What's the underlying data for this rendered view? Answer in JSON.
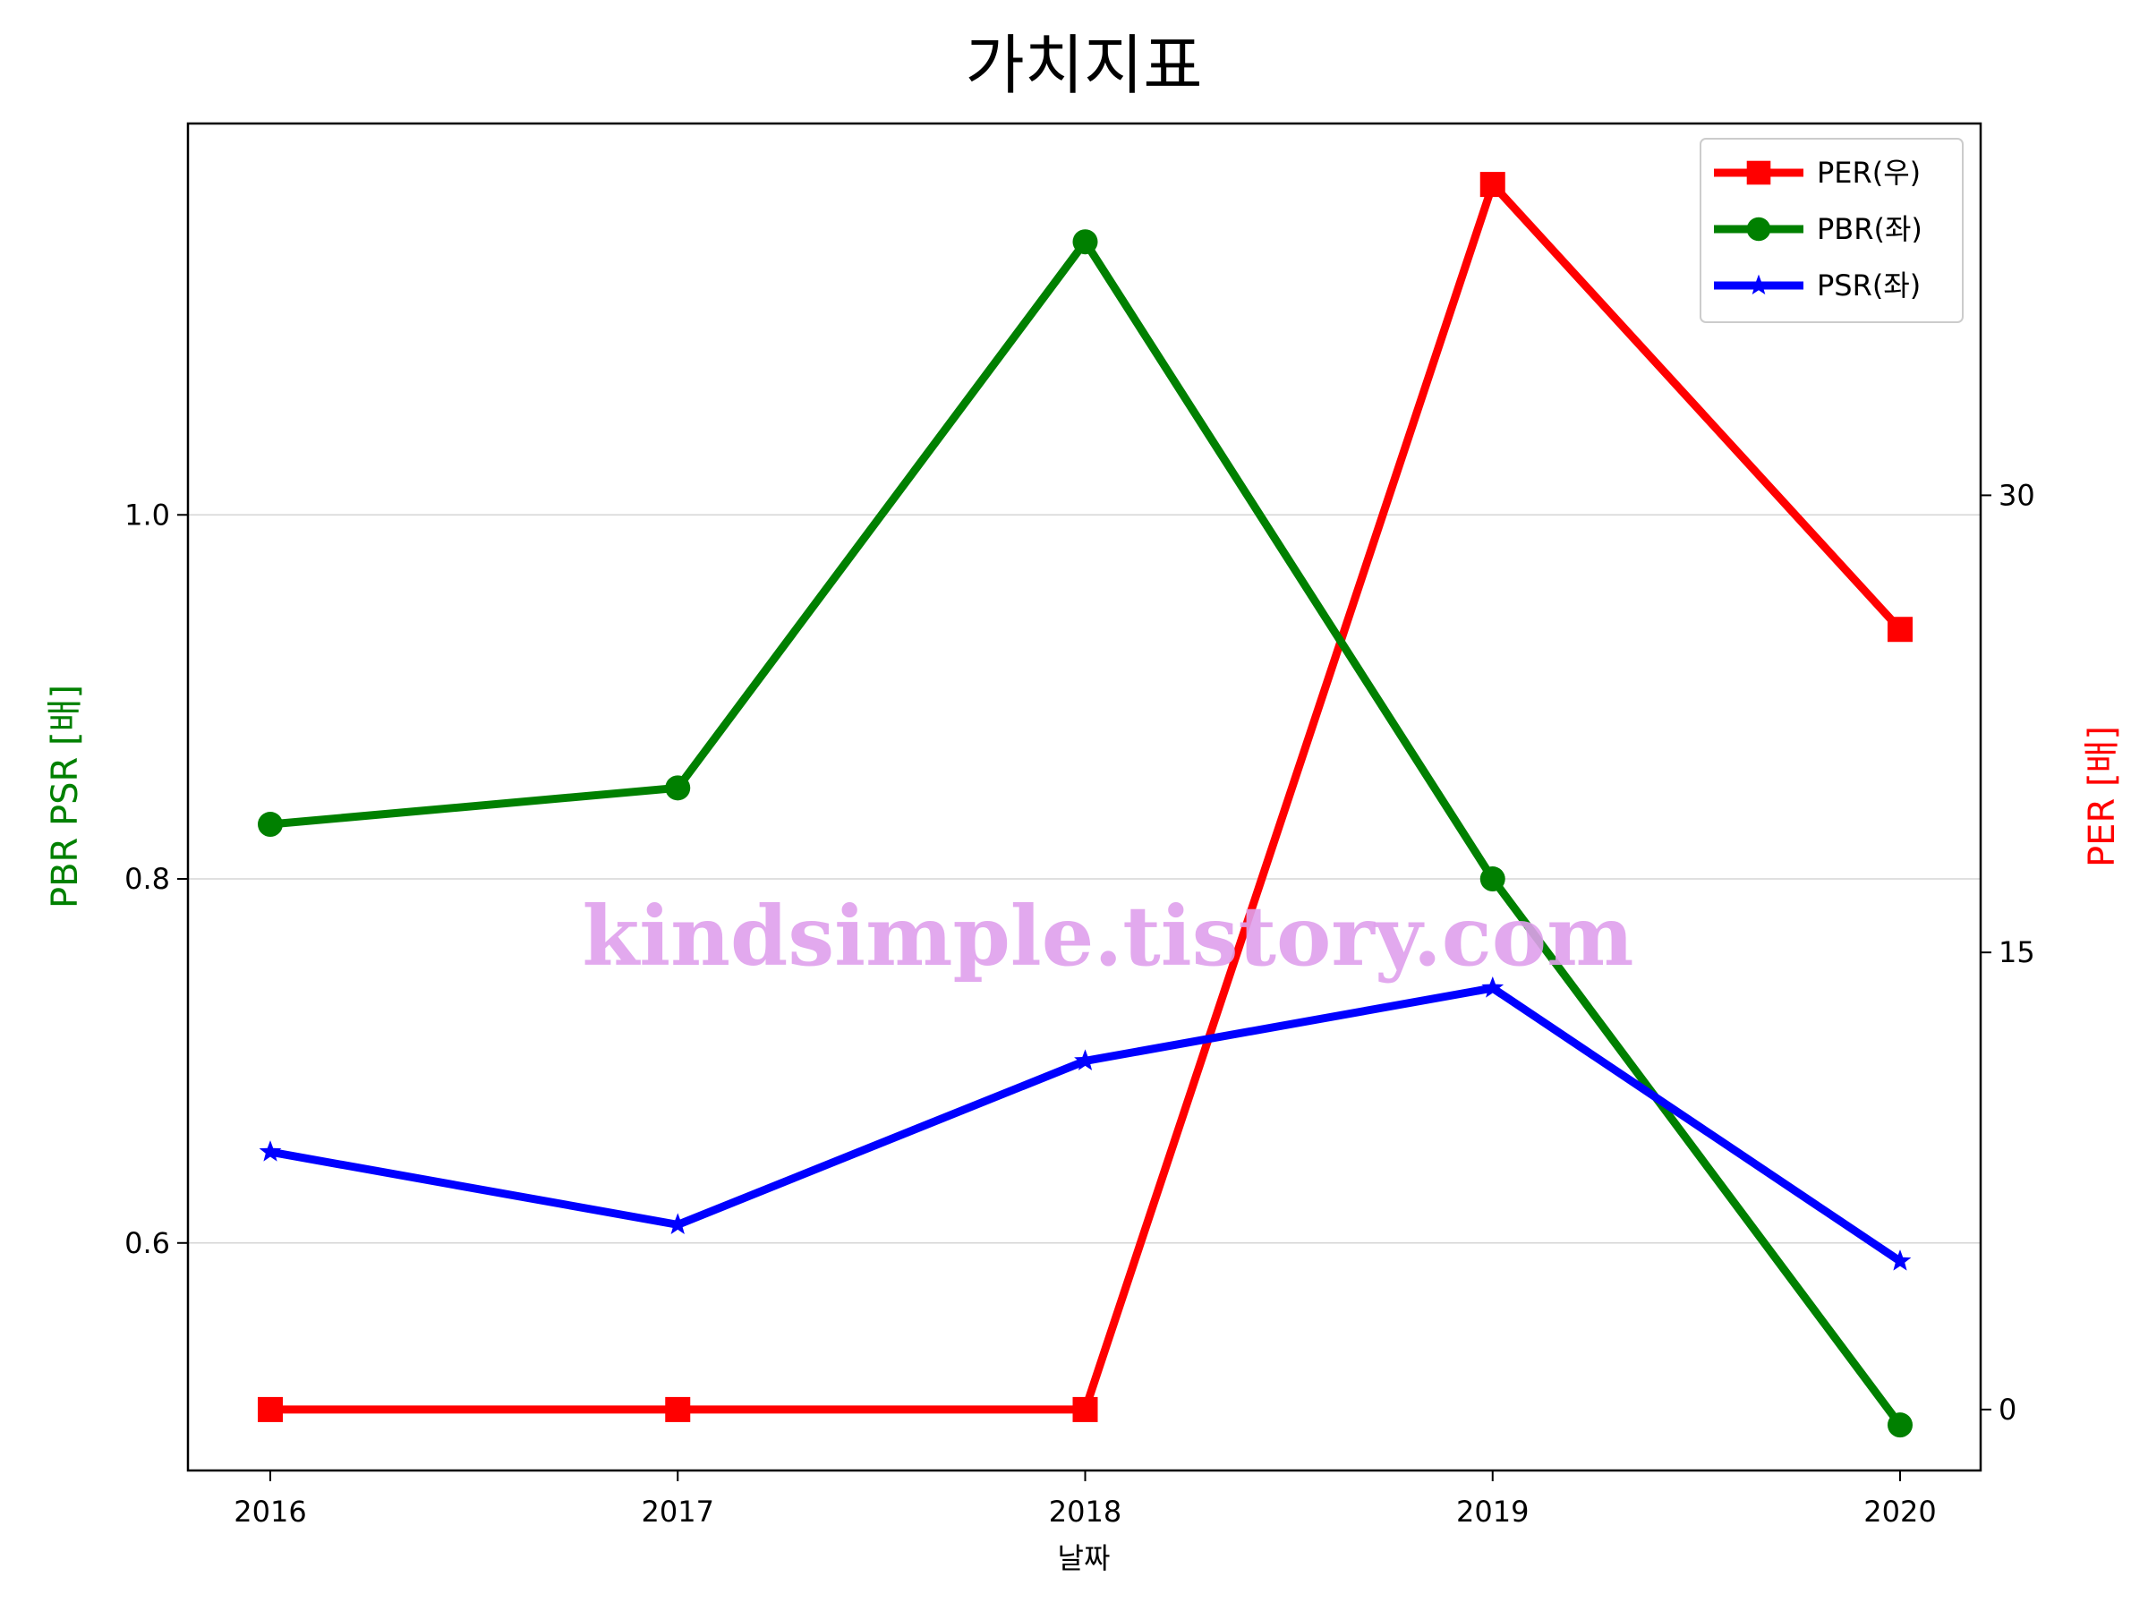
{
  "chart_data": {
    "type": "line",
    "title": "가치지표",
    "xlabel": "날짜",
    "ylabel_left": "PBR PSR [배]",
    "ylabel_right": "PER [배]",
    "ylabel_left_color": "#008000",
    "ylabel_right_color": "#ff0000",
    "x": [
      "2016",
      "2017",
      "2018",
      "2019",
      "2020"
    ],
    "y_left_range": [
      0.475,
      1.215
    ],
    "y_left_ticks": [
      "0.6",
      "0.8",
      "1.0"
    ],
    "y_right_range": [
      -2,
      42.2
    ],
    "y_right_ticks": [
      "0",
      "15",
      "30"
    ],
    "grid": true,
    "legend_position": "top-right",
    "series": [
      {
        "name": "PER(우)",
        "axis": "right",
        "color": "#ff0000",
        "marker": "square",
        "values": [
          0,
          0,
          0,
          40.2,
          25.6
        ]
      },
      {
        "name": "PBR(좌)",
        "axis": "left",
        "color": "#008000",
        "marker": "circle",
        "values": [
          0.83,
          0.85,
          1.15,
          0.8,
          0.5
        ]
      },
      {
        "name": "PSR(좌)",
        "axis": "left",
        "color": "#0000ff",
        "marker": "star",
        "values": [
          0.65,
          0.61,
          0.7,
          0.74,
          0.59
        ]
      }
    ]
  },
  "watermark": "kindsimple.tistory.com"
}
